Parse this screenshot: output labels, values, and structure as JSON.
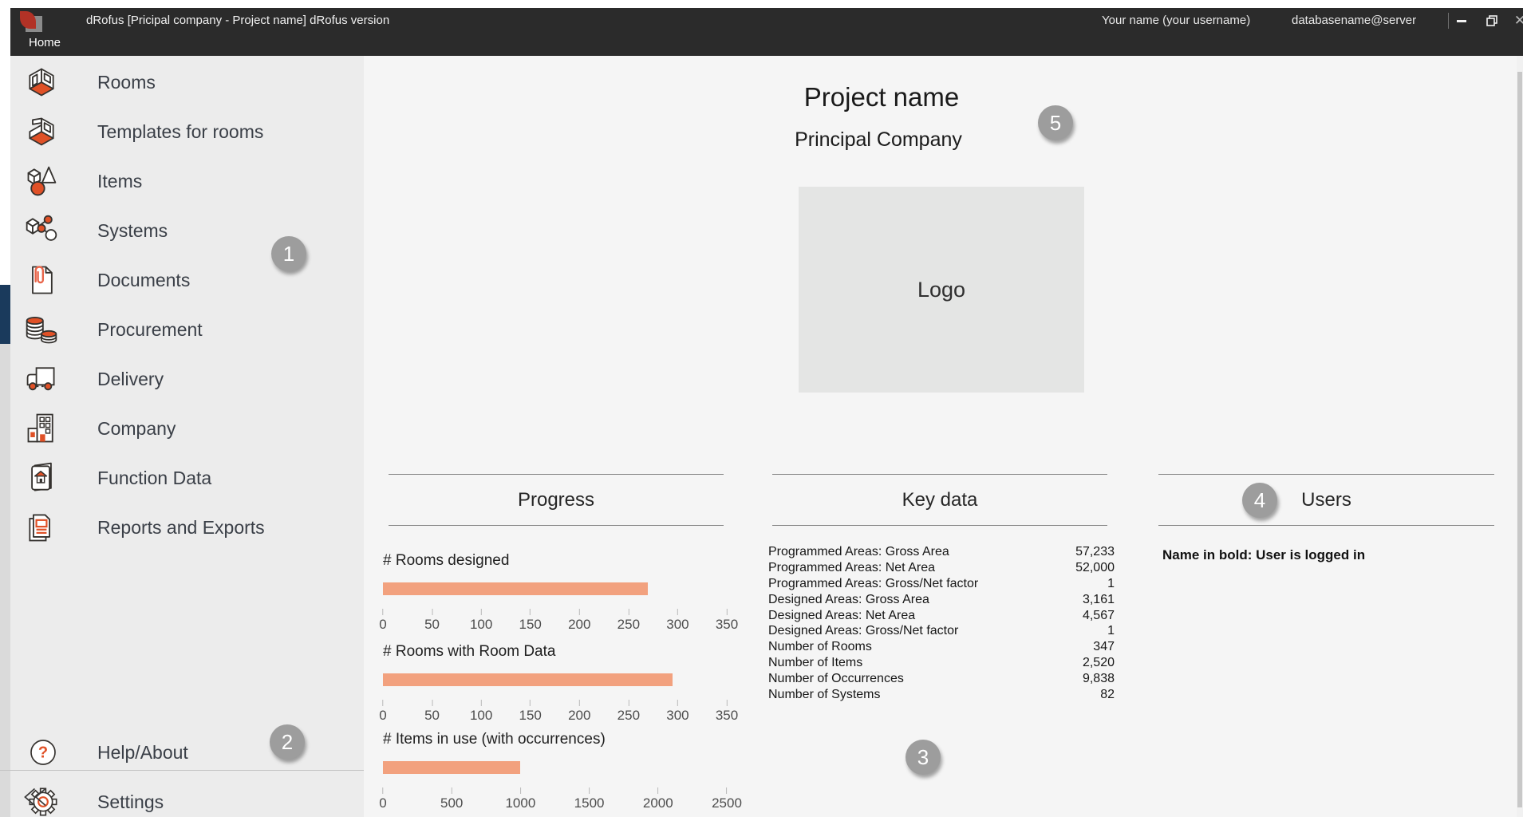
{
  "window": {
    "title": "dRofus [Pricipal company - Project name] dRofus version",
    "user": "Your name (your username)",
    "database": "databasename@server",
    "menu_home": "Home",
    "minimize": "–",
    "close": "✕"
  },
  "sidebar": {
    "items": [
      {
        "label": "Rooms"
      },
      {
        "label": "Templates for rooms"
      },
      {
        "label": "Items"
      },
      {
        "label": "Systems"
      },
      {
        "label": "Documents"
      },
      {
        "label": "Procurement"
      },
      {
        "label": "Delivery"
      },
      {
        "label": "Company"
      },
      {
        "label": "Function Data"
      },
      {
        "label": "Reports and Exports"
      }
    ],
    "footer": [
      {
        "label": "Help/About"
      },
      {
        "label": "Settings"
      }
    ]
  },
  "header": {
    "project_name": "Project name",
    "company_name": "Principal Company",
    "logo_placeholder": "Logo"
  },
  "sections": {
    "progress": {
      "title": "Progress"
    },
    "key_data": {
      "title": "Key data",
      "rows": [
        {
          "label": "Programmed Areas: Gross Area",
          "value": "57,233"
        },
        {
          "label": "Programmed Areas: Net Area",
          "value": "52,000"
        },
        {
          "label": "Programmed Areas: Gross/Net factor",
          "value": "1"
        },
        {
          "label": "Designed Areas: Gross Area",
          "value": "3,161"
        },
        {
          "label": "Designed Areas: Net Area",
          "value": "4,567"
        },
        {
          "label": "Designed Areas: Gross/Net factor",
          "value": "1"
        },
        {
          "label": "Number of Rooms",
          "value": "347"
        },
        {
          "label": "Number of Items",
          "value": "2,520"
        },
        {
          "label": "Number of Occurrences",
          "value": "9,838"
        },
        {
          "label": "Number of Systems",
          "value": "82"
        }
      ]
    },
    "users": {
      "title": "Users",
      "note": "Name in bold: User is logged in"
    }
  },
  "annotations": [
    "1",
    "2",
    "3",
    "4",
    "5"
  ],
  "colors": {
    "accent_orange": "#e05127",
    "bar_salmon": "#f2a17e",
    "navy_indicator": "#1a3a5c",
    "titlebar": "#2b2b2b"
  },
  "chart_data": [
    {
      "type": "bar",
      "title": "# Rooms designed",
      "orientation": "horizontal",
      "value": 270,
      "xlim": [
        0,
        350
      ],
      "x_ticks": [
        0,
        50,
        100,
        150,
        200,
        250,
        300,
        350
      ],
      "bar_color": "#f2a17e"
    },
    {
      "type": "bar",
      "title": "# Rooms with Room Data",
      "orientation": "horizontal",
      "value": 295,
      "xlim": [
        0,
        350
      ],
      "x_ticks": [
        0,
        50,
        100,
        150,
        200,
        250,
        300,
        350
      ],
      "bar_color": "#f2a17e"
    },
    {
      "type": "bar",
      "title": "# Items in use (with occurrences)",
      "orientation": "horizontal",
      "value": 1000,
      "xlim": [
        0,
        2500
      ],
      "x_ticks": [
        0,
        500,
        1000,
        1500,
        2000,
        2500
      ],
      "bar_color": "#f2a17e"
    }
  ]
}
